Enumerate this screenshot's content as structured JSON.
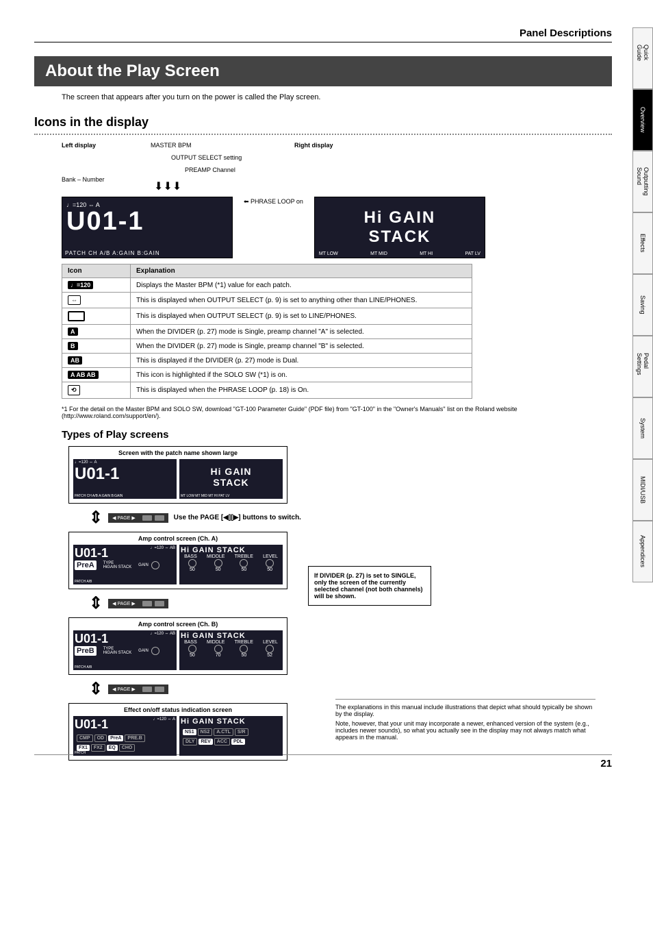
{
  "header": {
    "section_title": "Panel Descriptions"
  },
  "title": "About the Play Screen",
  "intro": "The screen that appears after you turn on the power is called the Play screen.",
  "icons_section": {
    "heading": "Icons in the display",
    "left_display_label": "Left display",
    "right_display_label": "Right display",
    "annotations": {
      "master_bpm": "MASTER BPM",
      "output_select": "OUTPUT SELECT setting",
      "preamp_channel": "PREAMP Channel",
      "bank_number": "Bank – Number",
      "phrase_loop": "PHRASE LOOP on"
    },
    "left_lcd": {
      "top": "♩=120 ⇔ A",
      "main": "U01-1",
      "bottom": "PATCH   CH A/B   A:GAIN   B:GAIN"
    },
    "right_lcd": {
      "line1": "Hi GAIN",
      "line2": "STACK",
      "bottom": [
        "MT LOW",
        "MT MID",
        "MT HI",
        "PAT LV"
      ]
    },
    "table": {
      "headers": [
        "Icon",
        "Explanation"
      ],
      "rows": [
        {
          "icon": "♩=120",
          "icon_class": "icon-badge",
          "text": "Displays the Master BPM (*1) value for each patch."
        },
        {
          "icon": "⇔",
          "icon_class": "icon-badge white",
          "text": "This is displayed when OUTPUT SELECT (p. 9) is set to anything other than LINE/PHONES."
        },
        {
          "icon": "▭",
          "icon_class": "icon-badge box",
          "text": "This is displayed when OUTPUT SELECT (p. 9) is set to LINE/PHONES."
        },
        {
          "icon": "A",
          "icon_class": "icon-badge",
          "text": "When the DIVIDER (p. 27) mode is Single, preamp channel \"A\" is selected."
        },
        {
          "icon": "B",
          "icon_class": "icon-badge",
          "text": "When the DIVIDER (p. 27) mode is Single, preamp channel \"B\" is selected."
        },
        {
          "icon": "AB",
          "icon_class": "icon-badge",
          "text": "This is displayed if the DIVIDER (p. 27) mode is Dual."
        },
        {
          "icon": "A  AB  AB",
          "icon_class": "icon-badge",
          "text": "This icon is highlighted if the SOLO SW (*1) is on."
        },
        {
          "icon": "⟲",
          "icon_class": "icon-badge white",
          "text": "This is displayed when the PHRASE LOOP (p. 18) is On."
        }
      ]
    },
    "footnote": "*1  For the detail on the Master BPM and SOLO SW, download \"GT-100 Parameter Guide\" (PDF file) from \"GT-100\" in the \"Owner's Manuals\" list on the Roland website (http://www.roland.com/support/en/)."
  },
  "types_section": {
    "heading": "Types of Play screens",
    "screens": [
      {
        "title": "Screen with the patch name shown large",
        "left": {
          "top": "♩=120 ⇔ A",
          "main": "U01-1",
          "bottom": "PATCH  CH A/B  A:GAIN  B:GAIN"
        },
        "right": {
          "line1": "Hi GAIN",
          "line2": "STACK",
          "bottom": "MT LOW  MT MID  MT HI  PAT LV"
        }
      },
      {
        "title": "Amp control screen (Ch. A)",
        "left": {
          "patch": "U01-1",
          "top": "♩=120 ⇔ AB",
          "preamp": "PreA",
          "type": "HiGAIN STACK",
          "gain": "80",
          "bottom": "PATCH      A/B"
        },
        "right": {
          "title": "Hi GAIN STACK",
          "labels": [
            "BASS",
            "MIDDLE",
            "TREBLE",
            "LEVEL"
          ],
          "vals": [
            "50",
            "50",
            "50",
            "50"
          ]
        }
      },
      {
        "title": "Amp control screen (Ch. B)",
        "left": {
          "patch": "U01-1",
          "top": "♩=120 ⇔ AB",
          "preamp": "PreB",
          "type": "HiGAIN STACK",
          "gain": "120",
          "bottom": "PATCH      A/B"
        },
        "right": {
          "title": "Hi GAIN STACK",
          "labels": [
            "BASS",
            "MIDDLE",
            "TREBLE",
            "LEVEL"
          ],
          "vals": [
            "50",
            "70",
            "50",
            "52"
          ]
        }
      },
      {
        "title": "Effect on/off status indication screen",
        "left": {
          "patch": "U01-1",
          "top": "♩=120 ⇔ A",
          "row1": [
            "CMP",
            "OD",
            "PreA",
            "PRE.B"
          ],
          "row2": [
            "FX1",
            "FX2",
            "EQ",
            "CHO"
          ],
          "bottom": "PATCH"
        },
        "right": {
          "title": "Hi GAIN STACK",
          "row1": [
            "NS1",
            "NS2",
            "A.CTL",
            "S/R"
          ],
          "row2": [
            "DLY",
            "REV",
            "ACC",
            "PDL"
          ]
        }
      }
    ],
    "switch_text": "Use the PAGE [◀][▶] buttons to switch.",
    "page_label": "◀  PAGE  ▶",
    "callout": "If DIVIDER (p. 27) is set to SINGLE, only the screen of the currently selected channel (not both channels) will be shown.",
    "note": {
      "p1": "The explanations in this manual include illustrations that depict what should typically be shown by the display.",
      "p2": "Note, however, that your unit may incorporate a newer, enhanced version of the system (e.g., includes newer sounds), so what you actually see in the display may not always match what appears in the manual."
    }
  },
  "sidebar_tabs": [
    "Quick Guide",
    "Overview",
    "Outputting Sound",
    "Effects",
    "Saving",
    "Pedal Settings",
    "System",
    "MIDI/USB",
    "Appendices"
  ],
  "active_tab": 1,
  "page_number": "21",
  "colors": {
    "title_bg": "#444444",
    "lcd_bg": "#1a1a2a"
  }
}
